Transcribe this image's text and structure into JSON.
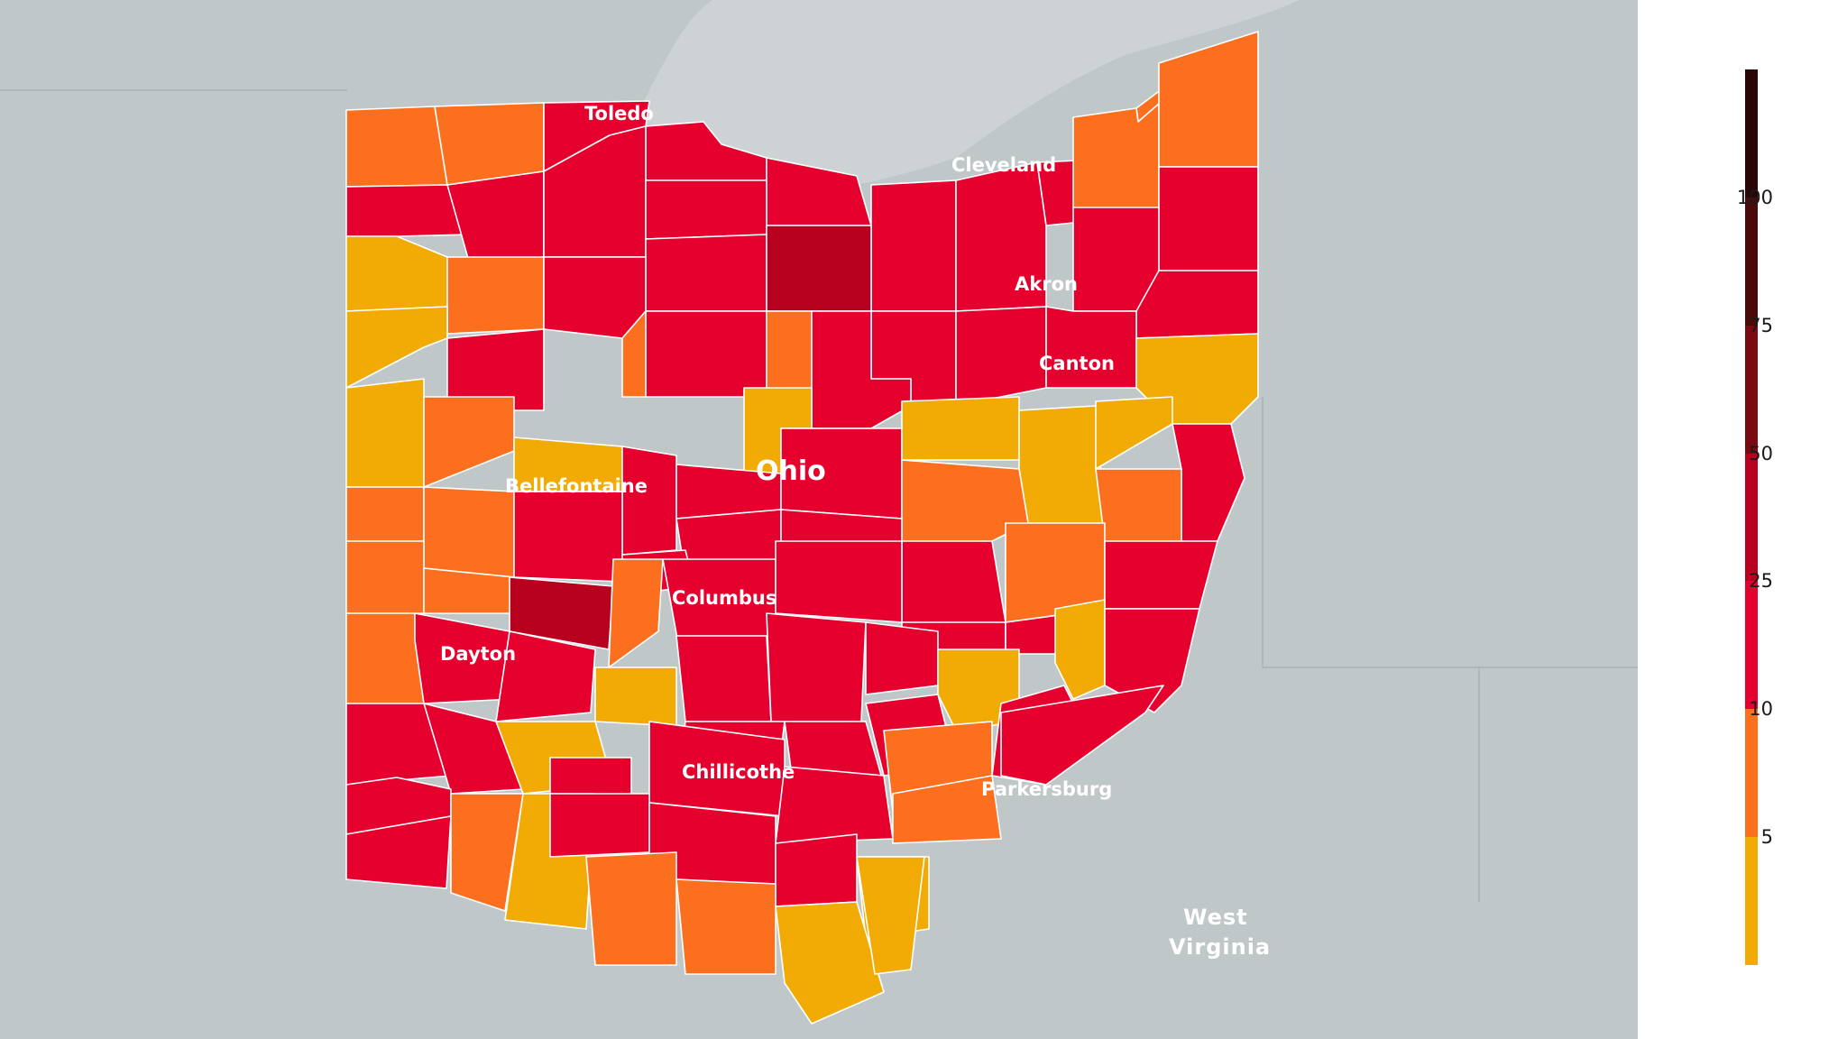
{
  "map": {
    "state_label": "Ohio",
    "neighbor_label": [
      "West",
      "Virginia"
    ],
    "cities": {
      "toledo": "Toledo",
      "cleveland": "Cleveland",
      "akron": "Akron",
      "canton": "Canton",
      "bellefontaine": "Bellefontaine",
      "columbus": "Columbus",
      "dayton": "Dayton",
      "chillicothe": "Chillicothe",
      "parkersburg": "Parkersburg"
    }
  },
  "legend": {
    "bins": [
      {
        "min": 0,
        "max": 5,
        "color": "#f2ab05"
      },
      {
        "min": 5,
        "max": 10,
        "color": "#fc6f1e"
      },
      {
        "min": 10,
        "max": 25,
        "color": "#e5002e"
      },
      {
        "min": 25,
        "max": 50,
        "color": "#b8001f"
      },
      {
        "min": 50,
        "max": 75,
        "color": "#7a0a10"
      },
      {
        "min": 75,
        "max": 100,
        "color": "#4a0a0a"
      },
      {
        "min": 100,
        "max": null,
        "color": "#2a0505"
      }
    ],
    "ticks": [
      "5",
      "10",
      "25",
      "50",
      "75",
      "100"
    ]
  },
  "colors": {
    "water": "#c0c7c9",
    "land": "#bac1c4",
    "lake": "#cdd2d4",
    "border": "#ffffff"
  }
}
